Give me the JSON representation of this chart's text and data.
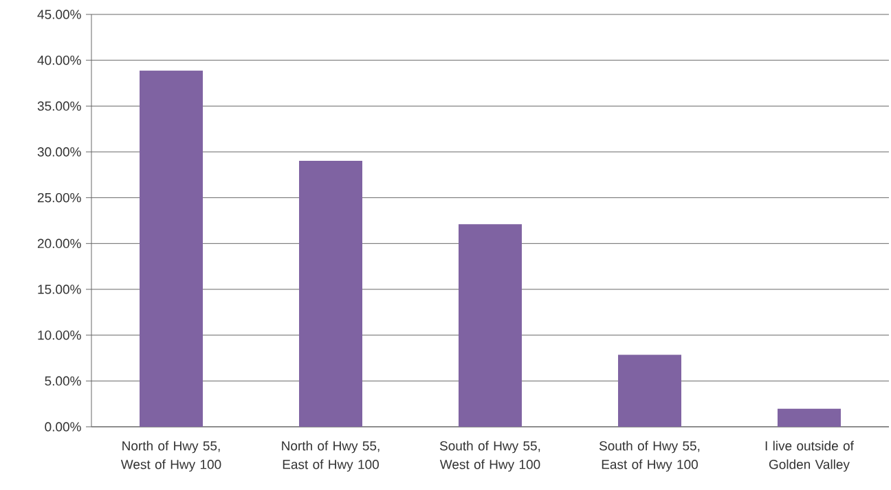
{
  "chart_data": {
    "type": "bar",
    "categories": [
      "North of Hwy 55, West of Hwy 100",
      "North of Hwy 55, East of Hwy 100",
      "South of Hwy 55, West of Hwy 100",
      "South of Hwy 55, East of Hwy 100",
      "I live outside of Golden Valley"
    ],
    "values": [
      38.87,
      29.03,
      22.1,
      7.85,
      1.96
    ],
    "color": "#7f63a2",
    "ylim": [
      0,
      45
    ],
    "yticks": [
      {
        "value": 0,
        "label": "0.00%"
      },
      {
        "value": 5,
        "label": "5.00%"
      },
      {
        "value": 10,
        "label": "10.00%"
      },
      {
        "value": 15,
        "label": "15.00%"
      },
      {
        "value": 20,
        "label": "20.00%"
      },
      {
        "value": 25,
        "label": "25.00%"
      },
      {
        "value": 30,
        "label": "30.00%"
      },
      {
        "value": 35,
        "label": "35.00%"
      },
      {
        "value": 40,
        "label": "40.00%"
      },
      {
        "value": 45,
        "label": "45.00%"
      }
    ],
    "grid": "y"
  }
}
